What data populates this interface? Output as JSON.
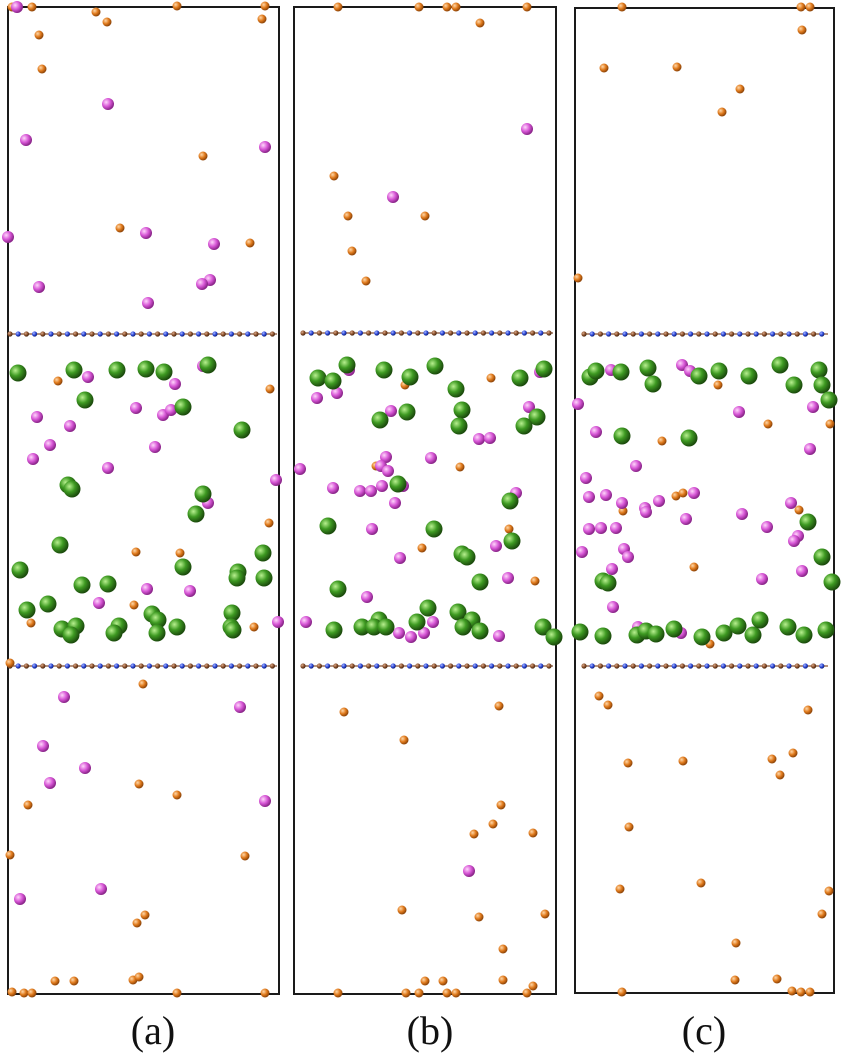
{
  "figure": {
    "panels": [
      {
        "id": "a",
        "label": "(a)"
      },
      {
        "id": "b",
        "label": "(b)"
      },
      {
        "id": "c",
        "label": "(c)"
      }
    ],
    "colors": {
      "frame": "#1a1a1a",
      "orange_atom": "#e07a1c",
      "magenta_atom": "#d756d6",
      "green_atom": "#3e9a22",
      "layer_blue_atom": "#2b47d9",
      "layer_brown_atom": "#8a4f2a"
    }
  }
}
